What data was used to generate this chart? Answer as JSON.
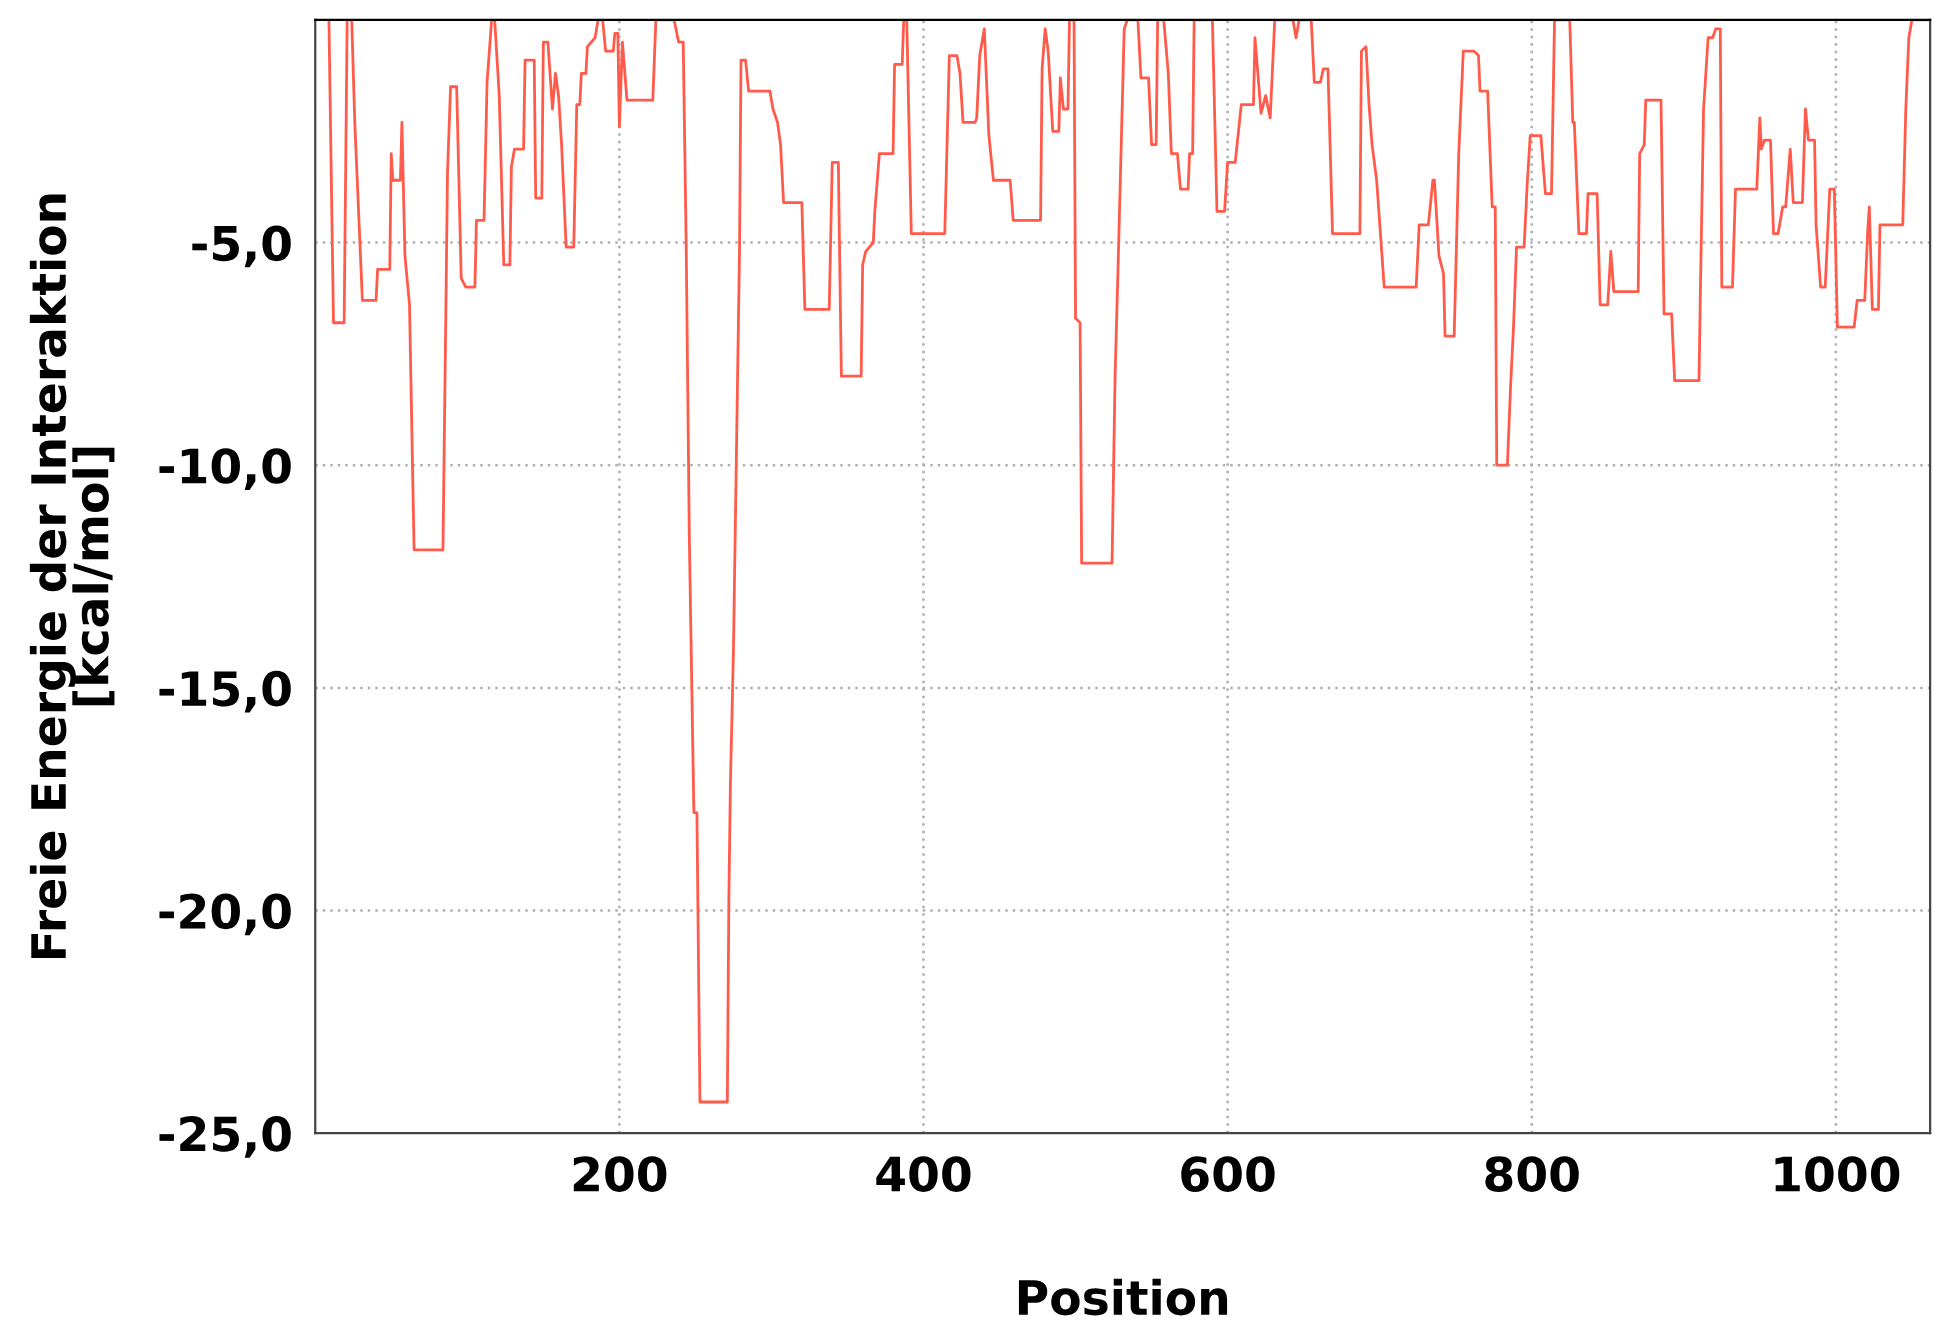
{
  "chart_data": {
    "type": "line",
    "xlabel": "Position",
    "ylabel": "Freie Energie der Interaktion\n[kcal/mol]",
    "xlim": [
      0,
      1062
    ],
    "ylim": [
      -25,
      0
    ],
    "xticks": [
      200,
      400,
      600,
      800,
      1000
    ],
    "yticks": [
      {
        "value": -5,
        "label": "-5,0"
      },
      {
        "value": -10,
        "label": "-10,0"
      },
      {
        "value": -15,
        "label": "-15,0"
      },
      {
        "value": -20,
        "label": "-20,0"
      },
      {
        "value": -25,
        "label": "-25,0"
      }
    ],
    "grid": true,
    "marker": "none",
    "line_style": "solid",
    "series": [
      {
        "color": "#ff5a4a",
        "x": [
          9,
          12,
          19,
          21,
          24,
          26,
          31,
          40,
          41,
          49,
          50,
          51,
          56,
          57,
          59,
          62,
          65,
          84,
          87,
          89,
          93,
          96,
          99,
          105,
          106,
          111,
          113,
          116,
          118,
          121,
          124,
          128,
          129,
          131,
          137,
          138,
          144,
          145,
          149,
          150,
          153,
          156,
          158,
          160,
          162,
          165,
          170,
          172,
          174,
          175,
          178,
          179,
          184,
          186,
          189,
          191,
          196,
          197,
          199,
          200,
          202,
          205,
          222,
          224,
          236,
          239,
          242,
          244,
          246,
          249,
          251,
          253,
          271,
          272,
          273,
          275,
          279,
          280,
          283,
          285,
          299,
          301,
          304,
          306,
          308,
          320,
          322,
          338,
          340,
          344,
          346,
          359,
          360,
          362,
          367,
          368,
          371,
          380,
          381,
          386,
          387,
          389,
          392,
          414,
          417,
          422,
          424,
          426,
          434,
          435,
          437,
          440,
          443,
          446,
          457,
          459,
          477,
          478,
          480,
          482,
          485,
          489,
          490,
          492,
          495,
          496,
          499,
          500,
          503,
          504,
          524,
          526,
          528,
          532,
          534,
          541,
          543,
          548,
          550,
          553,
          554,
          558,
          561,
          563,
          567,
          569,
          574,
          575,
          577,
          578,
          590,
          593,
          598,
          600,
          605,
          609,
          617,
          618,
          622,
          625,
          628,
          631,
          643,
          645,
          647,
          655,
          657,
          661,
          663,
          666,
          669,
          687,
          688,
          691,
          693,
          695,
          698,
          703,
          724,
          726,
          732,
          735,
          736,
          739,
          742,
          743,
          749,
          752,
          755,
          762,
          765,
          766,
          771,
          774,
          776,
          777,
          784,
          786,
          788,
          790,
          795,
          797,
          799,
          806,
          809,
          813,
          815,
          825,
          827,
          828,
          831,
          836,
          837,
          843,
          845,
          850,
          852,
          854,
          870,
          871,
          874,
          875,
          885,
          887,
          892,
          894,
          910,
          911,
          913,
          916,
          919,
          921,
          924,
          925,
          932,
          934,
          948,
          950,
          951,
          953,
          957,
          959,
          962,
          965,
          967,
          970,
          972,
          978,
          980,
          982,
          986,
          987,
          990,
          993,
          996,
          999,
          1001,
          1012,
          1014,
          1019,
          1021,
          1022,
          1024,
          1028,
          1029,
          1044,
          1046,
          1048,
          1050,
          1062
        ],
        "values": [
          0,
          -6.8,
          -6.8,
          0,
          0,
          -2.3,
          -6.3,
          -6.3,
          -5.6,
          -5.6,
          -3.0,
          -3.6,
          -3.6,
          -2.3,
          -5.3,
          -6.4,
          -11.9,
          -11.9,
          -3.4,
          -1.5,
          -1.5,
          -5.8,
          -6.0,
          -6.0,
          -4.5,
          -4.5,
          -1.4,
          0,
          0,
          -1.7,
          -5.5,
          -5.5,
          -3.3,
          -2.9,
          -2.9,
          -0.9,
          -0.9,
          -4.0,
          -4.0,
          -0.5,
          -0.5,
          -2.0,
          -1.2,
          -1.7,
          -2.8,
          -5.1,
          -5.1,
          -1.9,
          -1.9,
          -1.2,
          -1.2,
          -0.6,
          -0.4,
          0,
          0,
          -0.7,
          -0.7,
          -0.3,
          -0.3,
          -2.4,
          -0.5,
          -1.8,
          -1.8,
          0,
          0,
          -0.5,
          -0.5,
          -5.2,
          -11.6,
          -17.8,
          -17.8,
          -24.3,
          -24.3,
          -19.8,
          -17.2,
          -14.2,
          -5.2,
          -0.9,
          -0.9,
          -1.6,
          -1.6,
          -2.0,
          -2.3,
          -2.8,
          -4.1,
          -4.1,
          -6.5,
          -6.5,
          -3.2,
          -3.2,
          -8.0,
          -8.0,
          -5.5,
          -5.2,
          -5.0,
          -4.3,
          -3.0,
          -3.0,
          -1.0,
          -1.0,
          0,
          0,
          -4.8,
          -4.8,
          -0.8,
          -0.8,
          -1.2,
          -2.3,
          -2.3,
          -2.2,
          -0.8,
          -0.2,
          -2.6,
          -3.6,
          -3.6,
          -4.5,
          -4.5,
          -1.1,
          -0.2,
          -0.7,
          -2.5,
          -2.5,
          -1.3,
          -2.0,
          -2.0,
          0,
          0,
          -6.7,
          -6.8,
          -12.2,
          -12.2,
          -8.0,
          -5.5,
          -0.2,
          0,
          0,
          -1.3,
          -1.3,
          -2.8,
          -2.8,
          0,
          0,
          -1.2,
          -3.0,
          -3.0,
          -3.8,
          -3.8,
          -3.0,
          -3.0,
          0,
          0,
          -4.3,
          -4.3,
          -3.2,
          -3.2,
          -1.9,
          -1.9,
          -0.4,
          -2.1,
          -1.7,
          -2.2,
          0,
          0,
          -0.4,
          0,
          0,
          -1.4,
          -1.4,
          -1.1,
          -1.1,
          -4.8,
          -4.8,
          -0.7,
          -0.6,
          -1.9,
          -2.8,
          -3.6,
          -6.0,
          -6.0,
          -4.6,
          -4.6,
          -3.6,
          -3.6,
          -5.3,
          -5.7,
          -7.1,
          -7.1,
          -3.0,
          -0.7,
          -0.7,
          -0.8,
          -1.6,
          -1.6,
          -4.2,
          -4.2,
          -10.0,
          -10.0,
          -8.3,
          -6.9,
          -5.1,
          -5.1,
          -3.7,
          -2.6,
          -2.6,
          -3.9,
          -3.9,
          0,
          0,
          -2.3,
          -2.3,
          -4.8,
          -4.8,
          -3.9,
          -3.9,
          -6.4,
          -6.4,
          -5.2,
          -6.1,
          -6.1,
          -3.0,
          -2.8,
          -1.8,
          -1.8,
          -6.6,
          -6.6,
          -8.1,
          -8.1,
          -5.9,
          -2.0,
          -0.4,
          -0.4,
          -0.2,
          -0.2,
          -6.0,
          -6.0,
          -3.8,
          -3.8,
          -2.2,
          -2.9,
          -2.7,
          -2.7,
          -4.8,
          -4.8,
          -4.2,
          -4.2,
          -2.9,
          -4.1,
          -4.1,
          -2.0,
          -2.7,
          -2.7,
          -4.6,
          -6.0,
          -6.0,
          -3.8,
          -3.8,
          -6.9,
          -6.9,
          -6.3,
          -6.3,
          -4.7,
          -4.2,
          -6.5,
          -6.5,
          -4.6,
          -4.6,
          -2.0,
          -0.4,
          0,
          0
        ]
      }
    ]
  }
}
